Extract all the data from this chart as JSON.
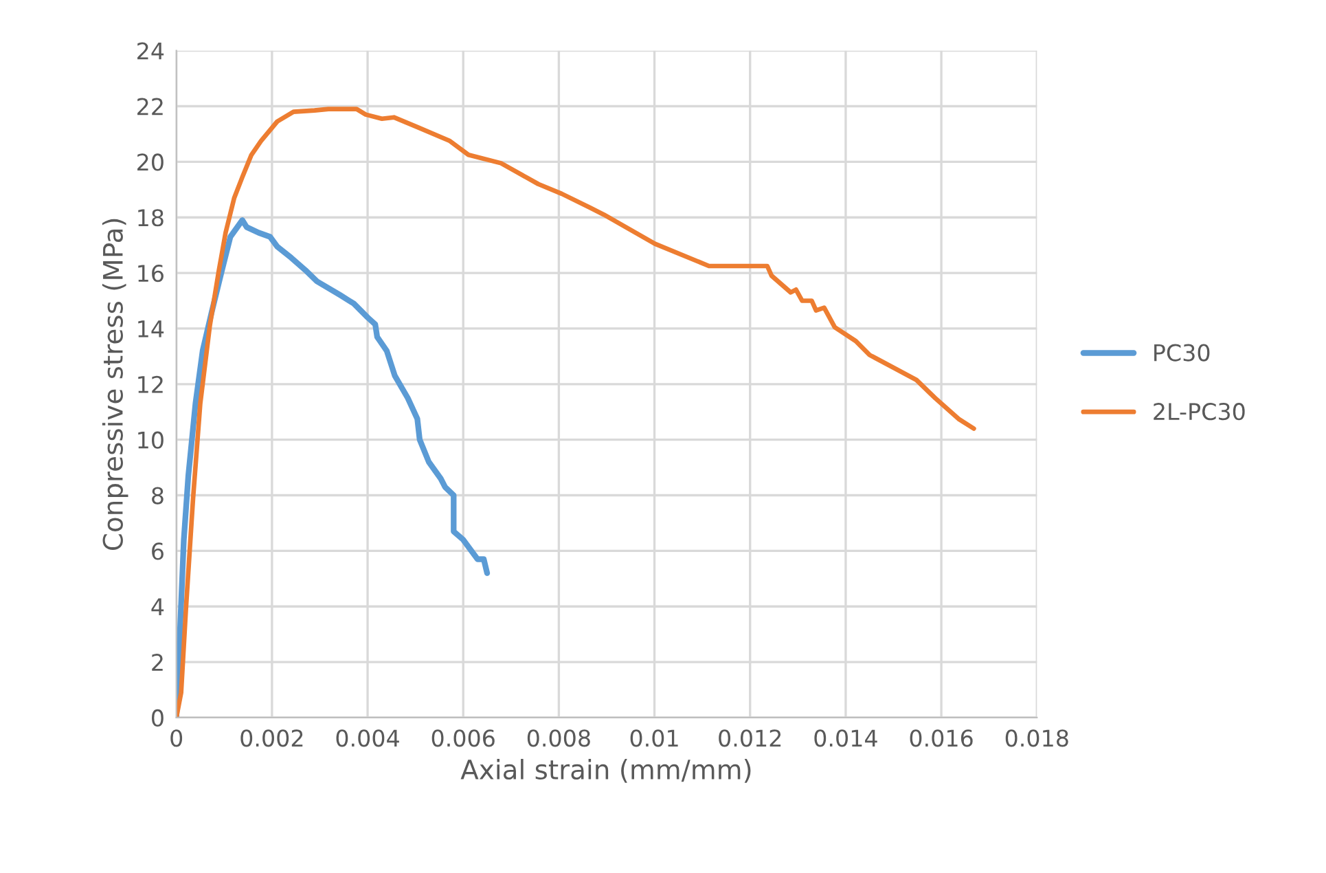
{
  "chart_data": {
    "type": "line",
    "xlabel": "Axial strain (mm/mm)",
    "ylabel": "Conpressive stress (MPa)",
    "xlim": [
      0,
      0.018
    ],
    "xticks": [
      0,
      0.002,
      0.004,
      0.006,
      0.008,
      0.01,
      0.012,
      0.014,
      0.016,
      0.018
    ],
    "ylim": [
      0,
      24
    ],
    "yticks": [
      0,
      2,
      4,
      6,
      8,
      10,
      12,
      14,
      16,
      18,
      20,
      22,
      24
    ],
    "grid": true,
    "legend": "right",
    "marker": "none",
    "line_style": "solid",
    "series": [
      {
        "name": "PC30",
        "color": "#5b9bd5",
        "x": [
          0,
          0.000156,
          0.00025,
          0.0004,
          0.00055,
          0.00074,
          0.00094,
          0.00113,
          0.00138,
          0.00147,
          0.00172,
          0.00196,
          0.00211,
          0.0024,
          0.0027,
          0.00294,
          0.00343,
          0.00371,
          0.004,
          0.00416,
          0.0042,
          0.0044,
          0.00457,
          0.00484,
          0.00504,
          0.00509,
          0.00528,
          0.00553,
          0.00562,
          0.0058,
          0.0058,
          0.006,
          0.0063,
          0.00643,
          0.0065
        ],
        "values": [
          0,
          6.4,
          8.7,
          11.3,
          13.2,
          14.6,
          16.0,
          17.3,
          17.9,
          17.65,
          17.45,
          17.3,
          16.95,
          16.55,
          16.1,
          15.7,
          15.2,
          14.9,
          14.4,
          14.15,
          13.7,
          13.2,
          12.3,
          11.5,
          10.75,
          10.0,
          9.2,
          8.6,
          8.3,
          8.0,
          6.7,
          6.4,
          5.7,
          5.7,
          5.2
        ]
      },
      {
        "name": "2L-PC30",
        "color": "#ed7d31",
        "x": [
          0,
          0.0001,
          0.0002,
          0.00035,
          0.0005,
          0.0007,
          0.00089,
          0.00103,
          0.00121,
          0.00138,
          0.00157,
          0.00177,
          0.00211,
          0.00245,
          0.00289,
          0.00318,
          0.00377,
          0.00396,
          0.0043,
          0.00455,
          0.00504,
          0.00572,
          0.00611,
          0.00679,
          0.00757,
          0.00806,
          0.00865,
          0.00894,
          0.01001,
          0.01114,
          0.01236,
          0.01245,
          0.01285,
          0.01296,
          0.01309,
          0.01329,
          0.01338,
          0.01355,
          0.01377,
          0.01421,
          0.0145,
          0.01499,
          0.01548,
          0.01587,
          0.01636,
          0.01668
        ],
        "values": [
          0,
          0.9,
          3.9,
          7.9,
          11.3,
          14.1,
          16.1,
          17.45,
          18.7,
          19.45,
          20.25,
          20.75,
          21.45,
          21.8,
          21.85,
          21.9,
          21.9,
          21.7,
          21.55,
          21.6,
          21.25,
          20.75,
          20.25,
          19.95,
          19.2,
          18.85,
          18.35,
          18.1,
          17.05,
          16.25,
          16.25,
          15.9,
          15.3,
          15.4,
          15.0,
          15.0,
          14.65,
          14.75,
          14.05,
          13.55,
          13.05,
          12.6,
          12.15,
          11.5,
          10.75,
          10.4
        ]
      }
    ]
  }
}
